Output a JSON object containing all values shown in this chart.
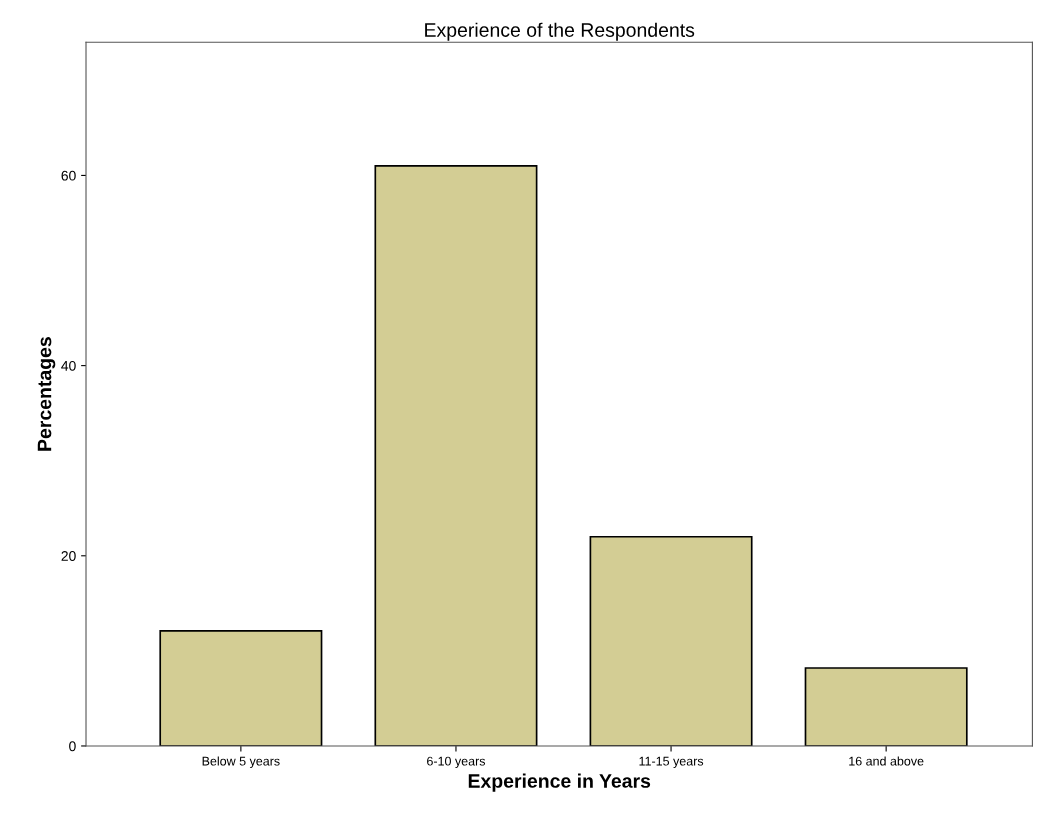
{
  "chart_data": {
    "type": "bar",
    "title": "Experience of the Respondents",
    "xlabel": "Experience in Years",
    "ylabel": "Percentages",
    "categories": [
      "Below 5 years",
      "6-10 years",
      "11-15 years",
      "16 and above"
    ],
    "values": [
      12.1,
      61,
      22,
      8.2
    ],
    "color": "#d3cd94",
    "ylim": [
      0,
      74
    ],
    "yticks": [
      0,
      20,
      40,
      60
    ],
    "grid": false
  }
}
